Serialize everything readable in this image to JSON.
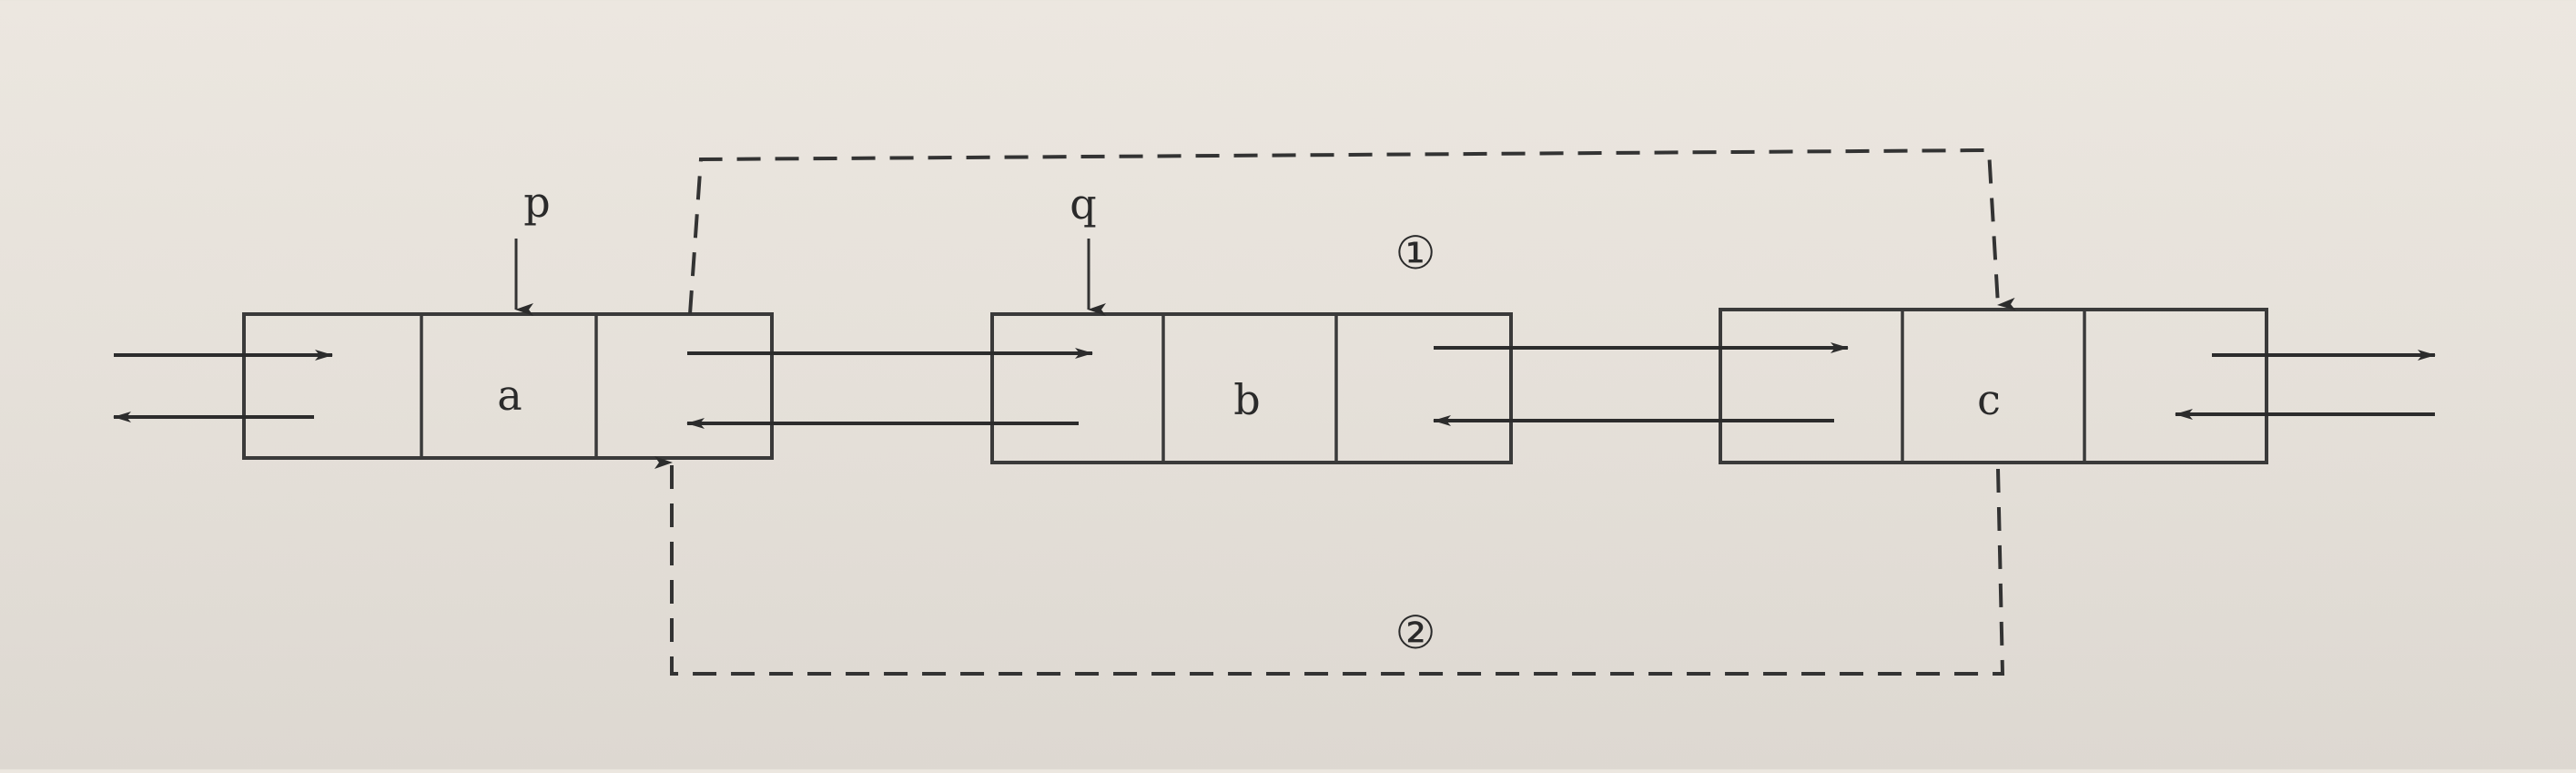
{
  "nodes": [
    {
      "id": "a",
      "label": "a"
    },
    {
      "id": "b",
      "label": "b"
    },
    {
      "id": "c",
      "label": "c"
    }
  ],
  "pointers": [
    {
      "name": "p",
      "label": "p",
      "target": "a"
    },
    {
      "name": "q",
      "label": "q",
      "target": "b"
    }
  ],
  "steps": [
    {
      "name": "step-1",
      "label": "①"
    },
    {
      "name": "step-2",
      "label": "②"
    }
  ]
}
